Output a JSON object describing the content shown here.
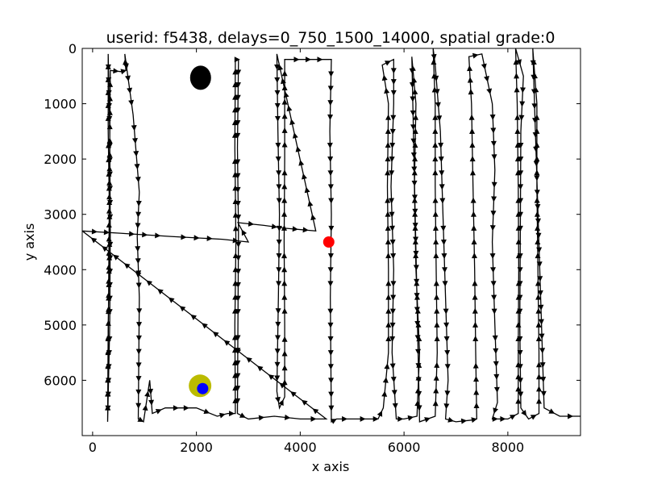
{
  "chart_data": {
    "type": "line",
    "title": "userid: f5438, delays=0_750_1500_14000, spatial grade:0",
    "xlabel": "x axis",
    "ylabel": "y axis",
    "xlim": [
      -200,
      9400
    ],
    "ylim": [
      7000,
      0
    ],
    "y_inverted": true,
    "grid": false,
    "legend": "none",
    "xticks": [
      0,
      2000,
      4000,
      6000,
      8000
    ],
    "yticks": [
      0,
      1000,
      2000,
      3000,
      4000,
      5000,
      6000
    ],
    "series": [
      {
        "color": "#000000",
        "marker": "triangle-arrow",
        "points": [
          [
            290,
            6750
          ],
          [
            300,
            5000
          ],
          [
            330,
            3300
          ],
          [
            300,
            1500
          ],
          [
            300,
            100
          ],
          [
            330,
            1500
          ],
          [
            340,
            3300
          ],
          [
            330,
            5000
          ],
          [
            290,
            6750
          ],
          [
            340,
            400
          ],
          [
            550,
            420
          ],
          [
            640,
            400
          ],
          [
            620,
            100
          ],
          [
            780,
            1200
          ],
          [
            900,
            2600
          ],
          [
            860,
            3400
          ],
          [
            900,
            4500
          ],
          [
            880,
            6700
          ],
          [
            980,
            6750
          ],
          [
            1100,
            6000
          ],
          [
            1150,
            6600
          ],
          [
            1400,
            6500
          ],
          [
            2000,
            6500
          ],
          [
            2400,
            6650
          ],
          [
            2600,
            6600
          ],
          [
            2750,
            6600
          ],
          [
            2740,
            5000
          ],
          [
            2760,
            3500
          ],
          [
            2740,
            1800
          ],
          [
            2750,
            200
          ],
          [
            2810,
            200
          ],
          [
            2790,
            1800
          ],
          [
            2810,
            3300
          ],
          [
            2800,
            5000
          ],
          [
            2790,
            6600
          ],
          [
            3000,
            6700
          ],
          [
            3500,
            6650
          ],
          [
            4000,
            6700
          ],
          [
            4500,
            6700
          ],
          [
            -200,
            3300
          ],
          [
            500,
            3340
          ],
          [
            1500,
            3400
          ],
          [
            2500,
            3450
          ],
          [
            3000,
            3500
          ],
          [
            2800,
            3150
          ],
          [
            3300,
            3200
          ],
          [
            3700,
            3250
          ],
          [
            4300,
            3300
          ],
          [
            3550,
            100
          ],
          [
            3570,
            1500
          ],
          [
            3600,
            3000
          ],
          [
            3580,
            4500
          ],
          [
            3550,
            6200
          ],
          [
            3600,
            6500
          ],
          [
            3700,
            6300
          ],
          [
            3700,
            5000
          ],
          [
            3690,
            3500
          ],
          [
            3700,
            2000
          ],
          [
            3700,
            200
          ],
          [
            4600,
            200
          ],
          [
            4570,
            1500
          ],
          [
            4600,
            3000
          ],
          [
            4580,
            4500
          ],
          [
            4600,
            6750
          ],
          [
            4700,
            6700
          ],
          [
            5000,
            6700
          ],
          [
            5400,
            6700
          ],
          [
            5500,
            6700
          ],
          [
            5600,
            6500
          ],
          [
            5700,
            5500
          ],
          [
            5700,
            4000
          ],
          [
            5680,
            2500
          ],
          [
            5700,
            1000
          ],
          [
            5580,
            300
          ],
          [
            5800,
            200
          ],
          [
            5800,
            1000
          ],
          [
            5750,
            2500
          ],
          [
            5800,
            4000
          ],
          [
            5770,
            5500
          ],
          [
            5850,
            6700
          ],
          [
            6000,
            6700
          ],
          [
            6250,
            6650
          ],
          [
            6300,
            5500
          ],
          [
            6230,
            4000
          ],
          [
            6200,
            2500
          ],
          [
            6230,
            1000
          ],
          [
            6150,
            150
          ],
          [
            6300,
            6750
          ],
          [
            6600,
            6650
          ],
          [
            6640,
            5500
          ],
          [
            6620,
            4000
          ],
          [
            6600,
            2500
          ],
          [
            6600,
            1000
          ],
          [
            6560,
            0
          ],
          [
            6600,
            300
          ],
          [
            6700,
            1500
          ],
          [
            6750,
            3000
          ],
          [
            6800,
            4500
          ],
          [
            6850,
            6000
          ],
          [
            6800,
            6700
          ],
          [
            7000,
            6750
          ],
          [
            7300,
            6720
          ],
          [
            7400,
            6700
          ],
          [
            7380,
            5500
          ],
          [
            7360,
            4000
          ],
          [
            7330,
            2500
          ],
          [
            7300,
            1000
          ],
          [
            7250,
            150
          ],
          [
            7500,
            100
          ],
          [
            7700,
            1000
          ],
          [
            7750,
            2200
          ],
          [
            7700,
            3500
          ],
          [
            7750,
            5000
          ],
          [
            7800,
            6400
          ],
          [
            7700,
            6700
          ],
          [
            7800,
            6700
          ],
          [
            8000,
            6700
          ],
          [
            8200,
            6600
          ],
          [
            8200,
            5500
          ],
          [
            8210,
            4000
          ],
          [
            8200,
            2500
          ],
          [
            8180,
            1000
          ],
          [
            8150,
            0
          ],
          [
            8300,
            500
          ],
          [
            8250,
            1500
          ],
          [
            8240,
            3500
          ],
          [
            8230,
            5000
          ],
          [
            8250,
            6500
          ],
          [
            8400,
            6700
          ],
          [
            8600,
            6600
          ],
          [
            8600,
            5500
          ],
          [
            8580,
            4000
          ],
          [
            8560,
            2500
          ],
          [
            8560,
            1000
          ],
          [
            8480,
            0
          ],
          [
            8700,
            6500
          ],
          [
            9000,
            6650
          ],
          [
            9400,
            6650
          ]
        ]
      }
    ],
    "markers": [
      {
        "x": 2080,
        "y": 530,
        "color": "#000000",
        "label": "black"
      },
      {
        "x": 4550,
        "y": 3500,
        "color": "#ff0000",
        "label": "red"
      },
      {
        "x": 2070,
        "y": 6100,
        "color": "#bbbb00",
        "label": "olive"
      },
      {
        "x": 2120,
        "y": 6150,
        "color": "#0000ff",
        "label": "blue"
      }
    ]
  }
}
